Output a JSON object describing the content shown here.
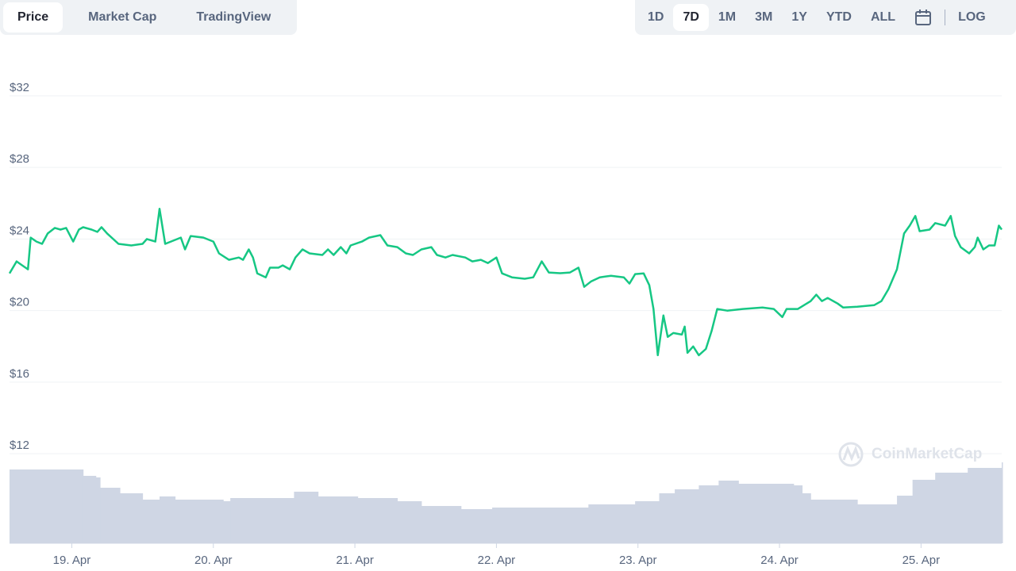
{
  "tabs": [
    "Price",
    "Market Cap",
    "TradingView"
  ],
  "active_tab": 0,
  "ranges": [
    "1D",
    "7D",
    "1M",
    "3M",
    "1Y",
    "YTD",
    "ALL"
  ],
  "active_range": 1,
  "log_label": "LOG",
  "watermark": "CoinMarketCap",
  "chart_data": {
    "type": "line",
    "xlim": [
      18.56,
      25.57
    ],
    "xticks": [
      {
        "value": 19,
        "label": "19. Apr"
      },
      {
        "value": 20,
        "label": "20. Apr"
      },
      {
        "value": 21,
        "label": "21. Apr"
      },
      {
        "value": 22,
        "label": "22. Apr"
      },
      {
        "value": 23,
        "label": "23. Apr"
      },
      {
        "value": 24,
        "label": "24. Apr"
      },
      {
        "value": 25,
        "label": "25. Apr"
      }
    ],
    "ylim": [
      7.0,
      34.7
    ],
    "yticks": [
      {
        "value": 12,
        "label": "$12"
      },
      {
        "value": 16,
        "label": "$16"
      },
      {
        "value": 20,
        "label": "$20"
      },
      {
        "value": 24,
        "label": "$24"
      },
      {
        "value": 28,
        "label": "$28"
      },
      {
        "value": 32,
        "label": "$32"
      }
    ],
    "y2lim": [
      0,
      625
    ],
    "grid": true,
    "series": [
      {
        "color": "#16c784",
        "x": [
          18.56,
          18.61,
          18.65,
          18.69,
          18.71,
          18.75,
          18.79,
          18.83,
          18.88,
          18.92,
          18.96,
          19.01,
          19.05,
          19.08,
          19.14,
          19.18,
          19.21,
          19.25,
          19.33,
          19.42,
          19.5,
          19.53,
          19.59,
          19.62,
          19.66,
          19.7,
          19.77,
          19.8,
          19.84,
          19.93,
          20.0,
          20.04,
          20.11,
          20.18,
          20.21,
          20.25,
          20.28,
          20.31,
          20.37,
          20.4,
          20.46,
          20.49,
          20.54,
          20.58,
          20.63,
          20.68,
          20.77,
          20.81,
          20.85,
          20.9,
          20.94,
          20.97,
          21.05,
          21.1,
          21.18,
          21.23,
          21.3,
          21.36,
          21.41,
          21.47,
          21.54,
          21.58,
          21.64,
          21.69,
          21.78,
          21.83,
          21.89,
          21.94,
          22.0,
          22.04,
          22.11,
          22.2,
          22.26,
          22.32,
          22.37,
          22.45,
          22.52,
          22.58,
          22.62,
          22.67,
          22.73,
          22.81,
          22.9,
          22.94,
          22.98,
          23.04,
          23.08,
          23.11,
          23.14,
          23.18,
          23.21,
          23.25,
          23.31,
          23.33,
          23.35,
          23.39,
          23.43,
          23.48,
          23.52,
          23.56,
          23.63,
          23.74,
          23.88,
          23.96,
          24.02,
          24.05,
          24.13,
          24.22,
          24.26,
          24.3,
          24.34,
          24.41,
          24.45,
          24.55,
          24.67,
          24.72,
          24.77,
          24.83,
          24.88,
          24.92,
          24.96,
          24.99,
          25.06,
          25.1,
          25.17,
          25.21,
          25.24,
          25.28,
          25.34,
          25.38,
          25.4,
          25.44,
          25.48,
          25.52,
          25.55,
          25.57
        ],
        "values": [
          22.08,
          22.75,
          22.53,
          22.31,
          24.08,
          23.86,
          23.73,
          24.31,
          24.62,
          24.53,
          24.62,
          23.86,
          24.53,
          24.66,
          24.53,
          24.4,
          24.66,
          24.31,
          23.73,
          23.64,
          23.73,
          24.0,
          23.86,
          25.69,
          23.73,
          23.86,
          24.08,
          23.42,
          24.17,
          24.08,
          23.86,
          23.2,
          22.84,
          22.97,
          22.84,
          23.42,
          22.97,
          22.08,
          21.86,
          22.4,
          22.4,
          22.53,
          22.31,
          22.97,
          23.42,
          23.2,
          23.11,
          23.42,
          23.11,
          23.55,
          23.2,
          23.64,
          23.86,
          24.08,
          24.22,
          23.64,
          23.55,
          23.2,
          23.11,
          23.42,
          23.55,
          23.11,
          22.97,
          23.11,
          22.97,
          22.75,
          22.84,
          22.66,
          22.97,
          22.08,
          21.86,
          21.78,
          21.86,
          22.75,
          22.13,
          22.09,
          22.13,
          22.4,
          21.33,
          21.64,
          21.86,
          21.95,
          21.86,
          21.51,
          22.04,
          22.08,
          21.42,
          20.09,
          17.51,
          19.73,
          18.53,
          18.75,
          18.66,
          19.11,
          17.64,
          18.0,
          17.51,
          17.86,
          18.86,
          20.09,
          20.0,
          20.09,
          20.17,
          20.09,
          19.64,
          20.09,
          20.09,
          20.53,
          20.89,
          20.53,
          20.71,
          20.4,
          20.17,
          20.22,
          20.31,
          20.53,
          21.2,
          22.31,
          24.31,
          24.75,
          25.29,
          24.44,
          24.53,
          24.89,
          24.75,
          25.29,
          24.17,
          23.55,
          23.2,
          23.55,
          24.08,
          23.42,
          23.64,
          23.64,
          24.75,
          24.53
        ]
      },
      {
        "color": "#cfd6e4",
        "axis": "y2",
        "x": [
          18.56,
          19.06,
          19.08,
          19.17,
          19.2,
          19.34,
          19.5,
          19.62,
          19.73,
          20.07,
          20.12,
          20.35,
          20.57,
          20.74,
          21.02,
          21.3,
          21.47,
          21.75,
          21.97,
          22.42,
          22.65,
          22.98,
          23.15,
          23.26,
          23.43,
          23.57,
          23.71,
          24.1,
          24.16,
          24.22,
          24.33,
          24.55,
          24.72,
          24.83,
          24.94,
          25.1,
          25.33,
          25.57
        ],
        "values": [
          93,
          93,
          85,
          83,
          70,
          63,
          55,
          59,
          55,
          53,
          57,
          57,
          65,
          59,
          57,
          53,
          47,
          43,
          45,
          45,
          49,
          53,
          63,
          68,
          73,
          79,
          75,
          73,
          63,
          55,
          55,
          49,
          49,
          60,
          80,
          89,
          95,
          102
        ]
      }
    ]
  }
}
